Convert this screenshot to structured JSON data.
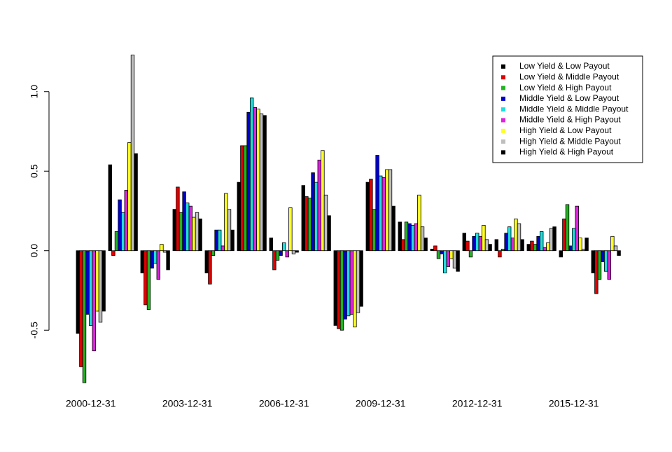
{
  "chart_data": {
    "type": "bar",
    "categories": [
      "2000-12-31",
      null,
      null,
      "2003-12-31",
      null,
      null,
      "2006-12-31",
      null,
      null,
      "2009-12-31",
      null,
      null,
      "2012-12-31",
      null,
      null,
      "2015-12-31",
      null
    ],
    "series": [
      {
        "name": "Low Yield & Low Payout",
        "color": "#000000",
        "values": [
          -0.52,
          0.54,
          -0.14,
          0.26,
          -0.14,
          0.43,
          0.08,
          0.41,
          -0.47,
          0.43,
          0.18,
          0.01,
          0.11,
          0.07,
          0.04,
          -0.04,
          -0.14
        ]
      },
      {
        "name": "Low Yield & Middle Payout",
        "color": "#df0000",
        "values": [
          -0.73,
          -0.03,
          -0.34,
          0.4,
          -0.21,
          0.66,
          -0.12,
          0.34,
          -0.49,
          0.45,
          0.07,
          0.03,
          0.06,
          -0.04,
          0.06,
          0.2,
          -0.27
        ]
      },
      {
        "name": "Low Yield & High Payout",
        "color": "#22b322",
        "values": [
          -0.83,
          0.12,
          -0.37,
          0.24,
          -0.03,
          0.66,
          -0.06,
          0.33,
          -0.5,
          0.26,
          0.18,
          -0.05,
          -0.04,
          0.01,
          0.04,
          0.29,
          -0.18
        ]
      },
      {
        "name": "Middle Yield & Low Payout",
        "color": "#0000cc",
        "values": [
          -0.4,
          0.32,
          -0.11,
          0.37,
          0.13,
          0.87,
          -0.03,
          0.49,
          -0.43,
          0.6,
          0.17,
          -0.02,
          0.09,
          0.11,
          0.09,
          0.03,
          -0.07
        ]
      },
      {
        "name": "Middle Yield & Middle Payout",
        "color": "#22dddd",
        "values": [
          -0.47,
          0.24,
          -0.08,
          0.3,
          0.13,
          0.96,
          0.05,
          0.43,
          -0.41,
          0.47,
          0.16,
          -0.14,
          0.11,
          0.15,
          0.12,
          0.14,
          -0.13
        ]
      },
      {
        "name": "Middle Yield & High Payout",
        "color": "#dd22dd",
        "values": [
          -0.63,
          0.38,
          -0.18,
          0.28,
          0.03,
          0.9,
          -0.04,
          0.57,
          -0.4,
          0.46,
          0.17,
          -0.1,
          0.09,
          0.08,
          0.02,
          0.28,
          -0.18
        ]
      },
      {
        "name": "High Yield & Low Payout",
        "color": "#ffff22",
        "values": [
          -0.38,
          0.68,
          0.04,
          0.21,
          0.36,
          0.89,
          0.27,
          0.63,
          -0.48,
          0.51,
          0.35,
          -0.05,
          0.16,
          0.2,
          0.05,
          0.08,
          0.09
        ]
      },
      {
        "name": "High Yield & Middle Payout",
        "color": "#bebebe",
        "values": [
          -0.45,
          1.23,
          -0.01,
          0.24,
          0.26,
          0.86,
          -0.02,
          0.35,
          -0.39,
          0.51,
          0.15,
          -0.11,
          0.07,
          0.17,
          0.14,
          0.01,
          0.03
        ]
      },
      {
        "name": "High Yield & High Payout",
        "color": "#000000",
        "values": [
          -0.38,
          0.61,
          -0.12,
          0.2,
          0.13,
          0.85,
          -0.01,
          0.22,
          -0.35,
          0.28,
          0.08,
          -0.13,
          0.04,
          0.07,
          0.15,
          0.08,
          -0.03
        ]
      }
    ],
    "ylim": [
      -0.9,
      1.25
    ],
    "yticks": [
      -0.5,
      {
        "value": 0,
        "label": "0.0"
      },
      0.5,
      {
        "value": 1,
        "label": "1.0"
      }
    ],
    "legend": "top-right"
  }
}
